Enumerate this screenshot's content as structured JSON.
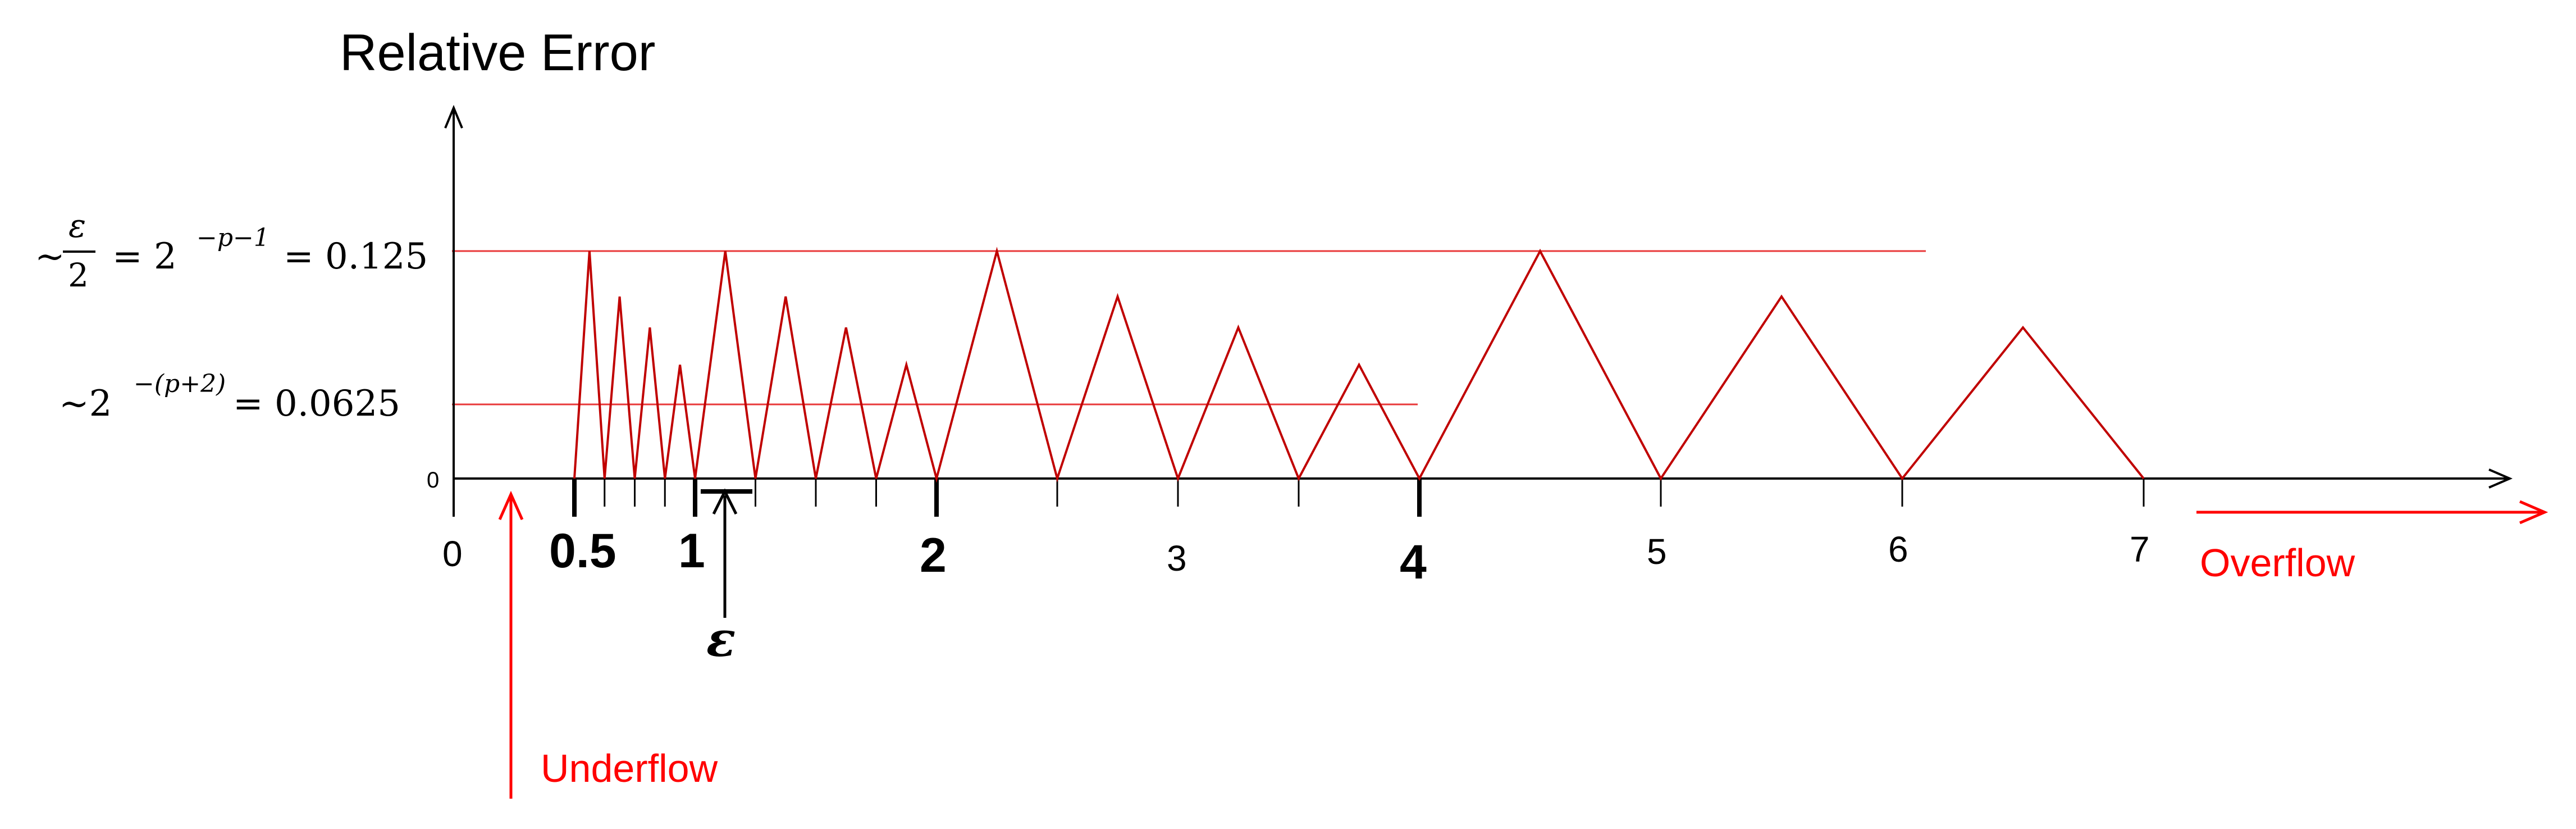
{
  "title": "Relative Error",
  "y_labels": {
    "upper_tilde": "~",
    "upper_eps": "ε",
    "upper_den": "2",
    "upper_eq1": "= 2",
    "upper_exp": "−p−1",
    "upper_eq2": "= 0.125",
    "lower_tilde": "~2",
    "lower_exp": "−(p+2)",
    "lower_eq": "= 0.0625",
    "zero": "0"
  },
  "x_labels": {
    "zero": "0",
    "half": "0.5",
    "one": "1",
    "two": "2",
    "three": "3",
    "four": "4",
    "five": "5",
    "six": "6",
    "seven": "7"
  },
  "epsilon_label": "ε",
  "underflow_label": "Underflow",
  "overflow_label": "Overflow",
  "colors": {
    "axis": "#000000",
    "error_curve": "#c00000",
    "reference_lines": "#e8383a",
    "annotation": "#ff0000"
  },
  "chart_data": {
    "type": "line",
    "xlim": [
      0,
      7.5
    ],
    "ylim": [
      0,
      0.14
    ],
    "reference_levels": [
      0.125,
      0.0625
    ],
    "fp_points": [
      0.5,
      0.625,
      0.75,
      0.875,
      1,
      1.25,
      1.5,
      1.75,
      2,
      2.5,
      3,
      3.5,
      4,
      5,
      6,
      7
    ],
    "series": [
      {
        "x": [
          0.5,
          0.5625,
          0.625,
          0.6875,
          0.75,
          0.8125,
          0.875,
          0.9375,
          1,
          1.125,
          1.25,
          1.375,
          1.5,
          1.625,
          1.75,
          1.875,
          2,
          2.25,
          2.5,
          2.75,
          3,
          3.25,
          3.5,
          3.75,
          4,
          4.5,
          5,
          5.5,
          6,
          6.5,
          7
        ],
        "y": [
          0,
          0.125,
          0,
          0.1,
          0,
          0.083,
          0,
          0.0625,
          0,
          0.125,
          0,
          0.1,
          0,
          0.083,
          0,
          0.0625,
          0,
          0.125,
          0,
          0.1,
          0,
          0.083,
          0,
          0.0625,
          0,
          0.125,
          0,
          0.1,
          0,
          0.083,
          0
        ]
      }
    ]
  }
}
